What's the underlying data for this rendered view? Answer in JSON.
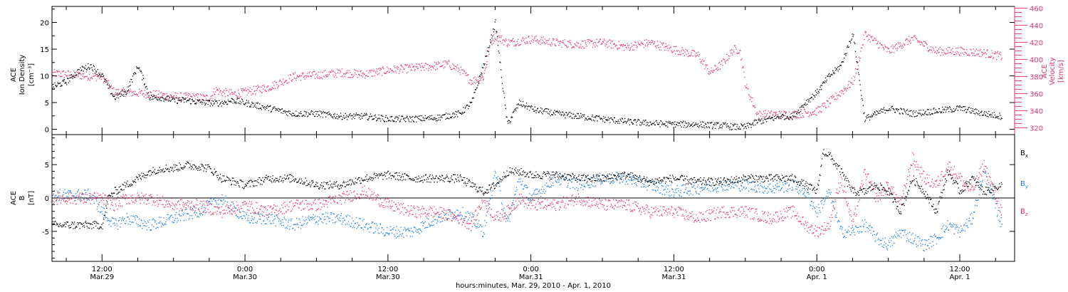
{
  "colors": {
    "axis": "#000000",
    "velocity": "#e8336b",
    "density": "#000000",
    "bx": "#000000",
    "by": "#1e7fdc",
    "bz": "#e8336b"
  },
  "chart_data": [
    {
      "type": "scatter",
      "panel": "top",
      "ylabel_left": [
        "ACE",
        "Ion Density",
        "[cm⁻³]"
      ],
      "ylabel_right": [
        "ACE",
        "Velocity",
        "[km/s]"
      ],
      "ylim_left": [
        -1,
        23
      ],
      "ylim_right": [
        312,
        462
      ],
      "yticks_left": [
        "0",
        "5",
        "10",
        "15",
        "20"
      ],
      "yticks_right": [
        "320",
        "340",
        "360",
        "380",
        "400",
        "420",
        "440",
        "460"
      ],
      "x_unit": "hours since Mar. 29, 2010 00:00",
      "xlim": [
        7.8,
        88.6
      ],
      "series": [
        {
          "axis": "left",
          "x": [
            7.8,
            9,
            10,
            11,
            12,
            12.5,
            13,
            14,
            15,
            16,
            17,
            18,
            19,
            20,
            21,
            22,
            23,
            24,
            26,
            28,
            30,
            32,
            34,
            36,
            38,
            40,
            42,
            43,
            44,
            44.5,
            45,
            45.5,
            46,
            47,
            48,
            48.5,
            49,
            50,
            52,
            54,
            56,
            58,
            60,
            62,
            63,
            64,
            65,
            66,
            67,
            68,
            69,
            70,
            71,
            72,
            73,
            74,
            74.5,
            75,
            75.5,
            76,
            77,
            78,
            79,
            80,
            82,
            84,
            86,
            87.5
          ],
          "y": [
            8,
            9,
            11,
            12,
            10,
            8,
            6,
            7,
            12,
            6,
            6,
            5.5,
            5.5,
            5.2,
            5,
            5,
            5.5,
            5,
            4,
            3,
            3,
            2.5,
            2.5,
            2,
            2,
            2.2,
            3,
            5,
            12,
            16,
            20,
            10,
            1,
            5,
            4,
            3.5,
            3.5,
            3,
            2.5,
            2,
            1.5,
            1.2,
            1,
            1,
            0.8,
            0.8,
            0.5,
            0.5,
            1.5,
            2,
            2.5,
            2.5,
            5,
            7,
            10,
            12,
            15,
            18,
            10,
            2,
            3,
            4,
            3.5,
            3,
            3.5,
            4,
            3,
            2.5
          ]
        },
        {
          "axis": "right",
          "x": [
            7.8,
            9,
            10,
            11,
            12,
            13,
            14,
            16,
            18,
            20,
            21,
            21.5,
            22,
            23,
            24,
            26,
            28,
            30,
            32,
            34,
            36,
            38,
            40,
            41,
            42,
            43,
            44,
            44.3,
            44.6,
            45,
            46,
            48,
            50,
            52,
            54,
            56,
            58,
            60,
            62,
            63,
            64,
            65,
            65.5,
            66,
            67,
            68,
            69,
            70,
            71,
            72,
            73,
            74,
            74.5,
            75,
            75.5,
            76,
            77,
            78,
            80,
            82,
            84,
            86,
            87.5
          ],
          "y": [
            384,
            383,
            382,
            381,
            380,
            362,
            362,
            360,
            357,
            356,
            355,
            365,
            362,
            360,
            362,
            368,
            380,
            382,
            385,
            383,
            388,
            390,
            393,
            395,
            388,
            375,
            380,
            400,
            420,
            428,
            420,
            424,
            420,
            418,
            420,
            415,
            420,
            412,
            405,
            385,
            395,
            412,
            412,
            370,
            336,
            336,
            336,
            336,
            338,
            340,
            350,
            362,
            368,
            375,
            400,
            430,
            420,
            410,
            425,
            410,
            410,
            408,
            404
          ]
        }
      ]
    },
    {
      "type": "scatter",
      "panel": "bottom",
      "ylabel_left": [
        "ACE",
        "B",
        "[nT]"
      ],
      "ylim": [
        -9.5,
        9.5
      ],
      "yticks": [
        "-5",
        "0",
        "5"
      ],
      "xlim": [
        7.8,
        88.6
      ],
      "xticks": [
        {
          "time": "12:00",
          "date": "Mar.29",
          "hour": 12
        },
        {
          "time": "0:00",
          "date": "Mar.30",
          "hour": 24
        },
        {
          "time": "12:00",
          "date": "Mar.30",
          "hour": 36
        },
        {
          "time": "0:00",
          "date": "Mar.31",
          "hour": 48
        },
        {
          "time": "12:00",
          "date": "Mar.31",
          "hour": 60
        },
        {
          "time": "0:00",
          "date": "Apr. 1",
          "hour": 72
        },
        {
          "time": "12:00",
          "date": "Apr. 1",
          "hour": 84
        }
      ],
      "xlabel": "hours:minutes, Mar. 29, 2010 - Apr. 1, 2010",
      "series": [
        {
          "name": "Bx",
          "x": [
            7.8,
            9,
            10,
            11,
            12,
            12.5,
            13,
            14,
            15,
            16,
            17,
            18,
            19,
            20,
            21,
            22,
            24,
            26,
            28,
            30,
            32,
            34,
            36,
            38,
            40,
            42,
            43,
            44,
            45,
            46,
            47,
            48,
            50,
            52,
            54,
            56,
            58,
            60,
            62,
            64,
            66,
            68,
            70,
            71,
            72,
            72.5,
            73,
            74,
            75,
            76,
            77,
            78,
            79,
            80,
            81,
            82,
            83,
            84,
            85,
            86,
            87.5
          ],
          "y": [
            -4,
            -4,
            -4,
            -4,
            -4,
            0,
            1,
            2,
            3,
            4,
            4.5,
            4.5,
            5,
            4.8,
            4.5,
            3,
            2,
            3,
            3,
            2,
            2,
            3,
            3.5,
            3,
            3,
            3,
            2,
            1,
            2,
            4,
            4,
            3.5,
            3.5,
            3,
            3,
            3.5,
            2.5,
            3,
            2.5,
            2.5,
            3,
            3,
            3,
            2,
            1,
            7,
            6.5,
            4,
            1,
            1,
            2,
            1,
            -2,
            3,
            1,
            -2,
            4,
            1,
            3,
            1,
            2
          ]
        },
        {
          "name": "By",
          "x": [
            7.8,
            9,
            10,
            11,
            12,
            13,
            14,
            16,
            18,
            20,
            22,
            24,
            26,
            28,
            30,
            32,
            34,
            36,
            38,
            40,
            42,
            43,
            44,
            45,
            46,
            47,
            48,
            50,
            52,
            54,
            56,
            58,
            60,
            62,
            64,
            66,
            68,
            70,
            71,
            72,
            73,
            74,
            75,
            76,
            77,
            78,
            79,
            80,
            81,
            82,
            83,
            84,
            85,
            86,
            87.5
          ],
          "y": [
            0.5,
            0.5,
            0.5,
            0.5,
            -2,
            -4,
            -3,
            -4,
            -3,
            -2,
            0,
            -3,
            -3,
            -4,
            -3,
            -3,
            -4,
            -5,
            -5,
            -3,
            -2,
            -3,
            -5,
            4,
            -4,
            3,
            0,
            3,
            2,
            3,
            3,
            2,
            1,
            1.5,
            2,
            2,
            1.5,
            2,
            1,
            -2,
            1,
            -5,
            -5,
            -4,
            -6,
            -7,
            -5,
            -6,
            -7,
            -6,
            -4,
            -5,
            -3,
            4,
            -4
          ]
        },
        {
          "name": "Bz",
          "x": [
            7.8,
            9,
            10,
            11,
            12,
            13,
            14,
            16,
            18,
            20,
            22,
            24,
            26,
            28,
            30,
            32,
            34,
            36,
            38,
            40,
            42,
            43,
            44,
            45,
            46,
            47,
            48,
            50,
            52,
            54,
            56,
            58,
            60,
            62,
            64,
            66,
            68,
            70,
            71,
            72,
            73,
            74,
            75,
            76,
            77,
            78,
            79,
            80,
            81,
            82,
            83,
            84,
            85,
            86,
            87.5
          ],
          "y": [
            0,
            0,
            0,
            0,
            0,
            -1,
            0,
            0,
            -1,
            -1,
            -2,
            -1,
            -2,
            -1,
            -1,
            0,
            1,
            -1,
            -2,
            -2,
            -3,
            -4,
            0,
            -3,
            -2,
            0,
            -1,
            -1,
            0,
            -1,
            -1,
            -2,
            -2,
            -3,
            -2,
            -2,
            -3,
            -2,
            -4,
            -5,
            -4,
            3,
            -4,
            4,
            0,
            2,
            -1,
            6,
            3,
            2,
            5,
            3,
            1,
            5,
            -2
          ]
        }
      ]
    }
  ]
}
